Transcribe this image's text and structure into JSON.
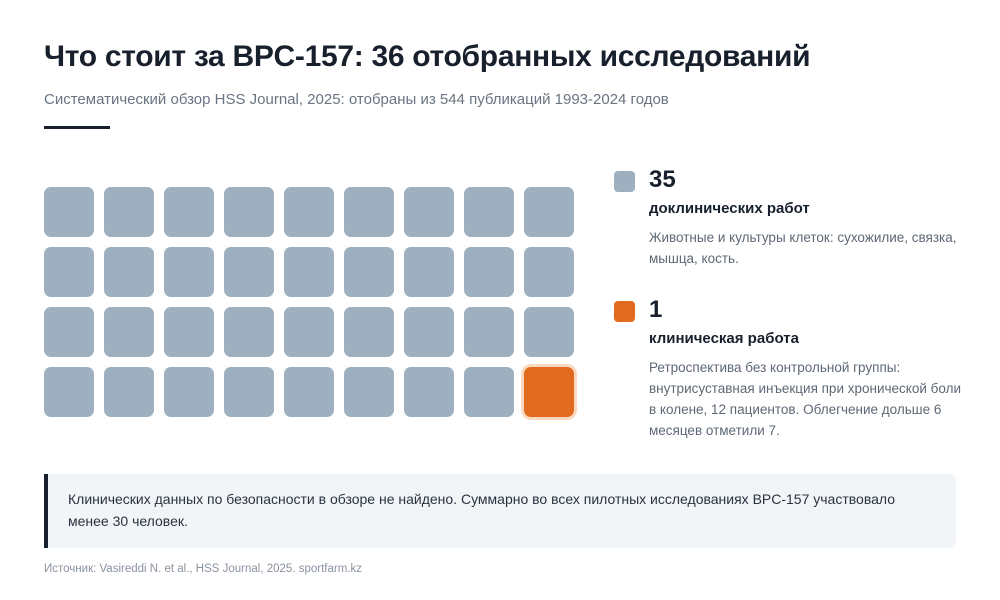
{
  "header": {
    "title": "Что стоит за BPC-157: 36 отобранных исследований",
    "subtitle": "Систематический обзор HSS Journal, 2025: отобраны из 544 публикаций 1993-2024 годов"
  },
  "chart_data": {
    "type": "waffle",
    "rows": 4,
    "columns": 9,
    "total": 36,
    "series": [
      {
        "count": 35,
        "label": "доклинических работ",
        "description": "Животные и культуры клеток: сухожилие, связка, мышца, кость.",
        "color": "#9eafc0"
      },
      {
        "count": 1,
        "label": "клиническая работа",
        "description": "Ретроспектива без контрольной группы: внутрисуставная инъекция при хронической боли в колене, 12 пациентов. Облегчение дольше 6 месяцев отметили 7.",
        "color": "#e06a1e"
      }
    ]
  },
  "note": {
    "text": "Клинических данных по безопасности в обзоре не найдено. Суммарно во всех пилотных исследованиях BPC-157 участвовало менее 30 человек."
  },
  "footer": {
    "source": "Источник: Vasireddi N. et al., HSS Journal, 2025. sportfarm.kz"
  }
}
